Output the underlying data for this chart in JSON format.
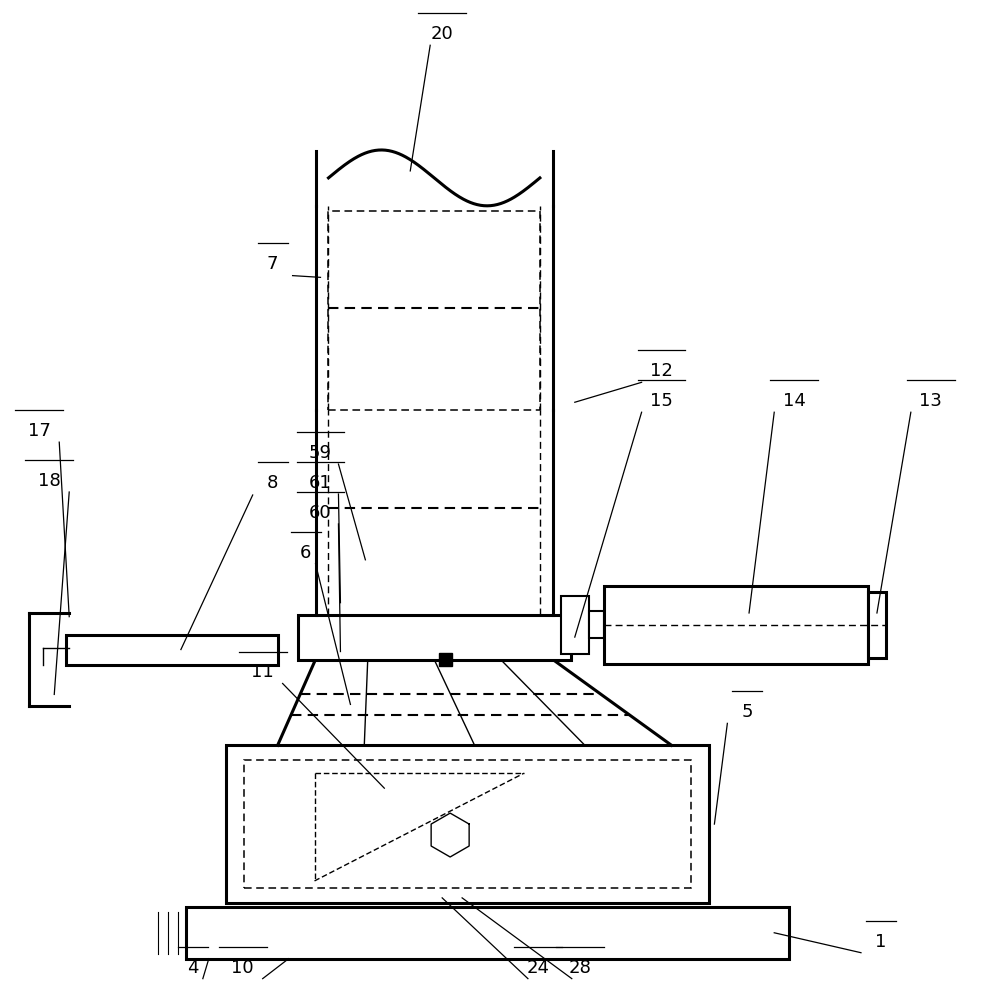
{
  "bg": "#ffffff",
  "lc": "#000000",
  "lw1": 2.2,
  "lw2": 1.5,
  "lw3": 1.0,
  "fs": 13
}
